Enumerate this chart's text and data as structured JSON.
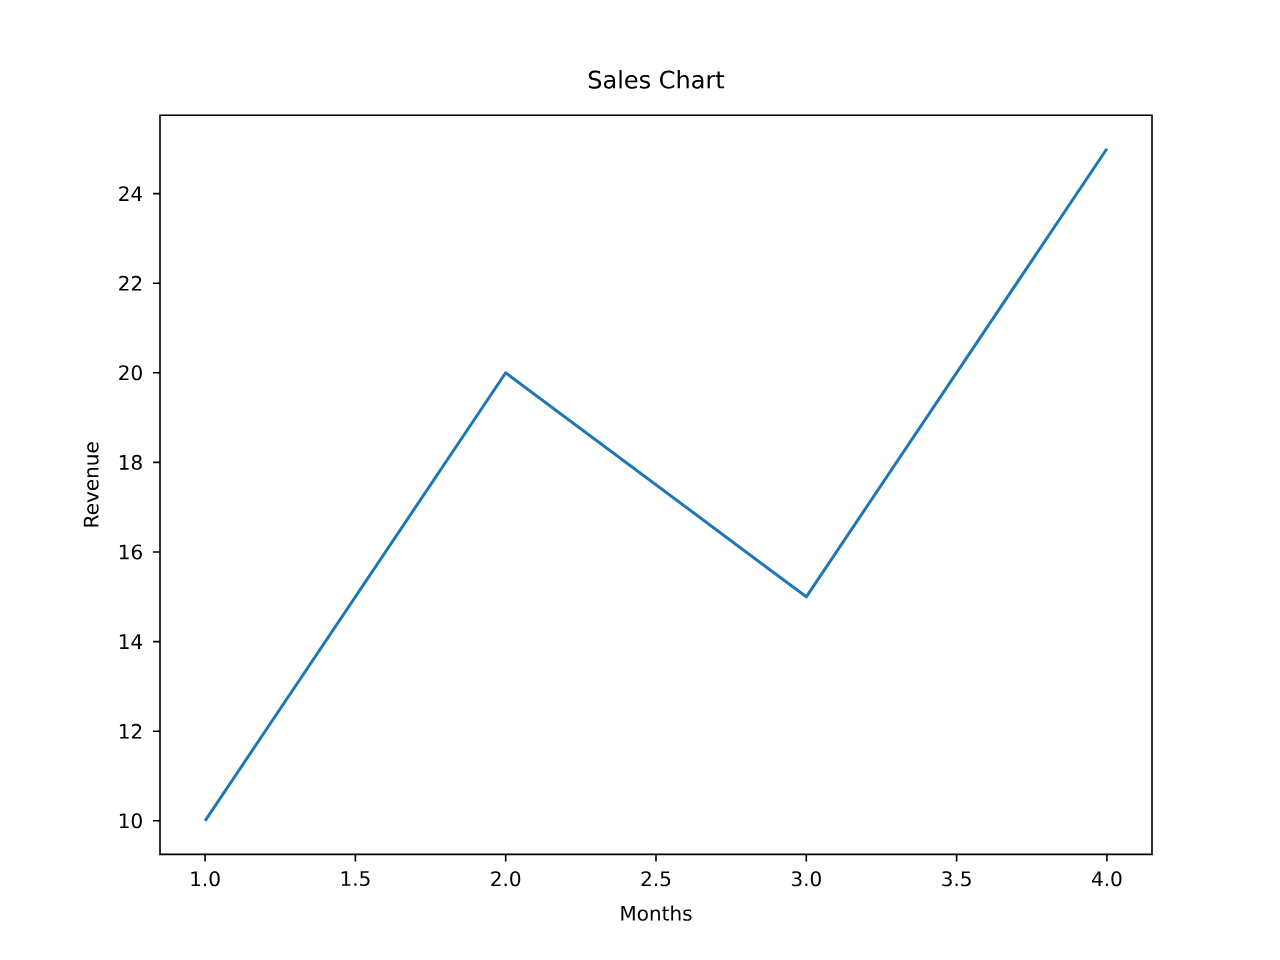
{
  "chart_data": {
    "type": "line",
    "title": "Sales Chart",
    "xlabel": "Months",
    "ylabel": "Revenue",
    "x": [
      1,
      2,
      3,
      4
    ],
    "series": [
      {
        "color": "#1f77b4",
        "values": [
          10,
          20,
          15,
          25
        ]
      }
    ],
    "xlim": [
      0.85,
      4.15
    ],
    "ylim": [
      9.25,
      25.75
    ],
    "xticks": [
      {
        "value": 1,
        "label": "1.0"
      },
      {
        "value": 1.5,
        "label": "1.5"
      },
      {
        "value": 2,
        "label": "2.0"
      },
      {
        "value": 2.5,
        "label": "2.5"
      },
      {
        "value": 3,
        "label": "3.0"
      },
      {
        "value": 3.5,
        "label": "3.5"
      },
      {
        "value": 4,
        "label": "4.0"
      }
    ],
    "yticks": [
      10,
      12,
      14,
      16,
      18,
      20,
      22,
      24
    ]
  }
}
